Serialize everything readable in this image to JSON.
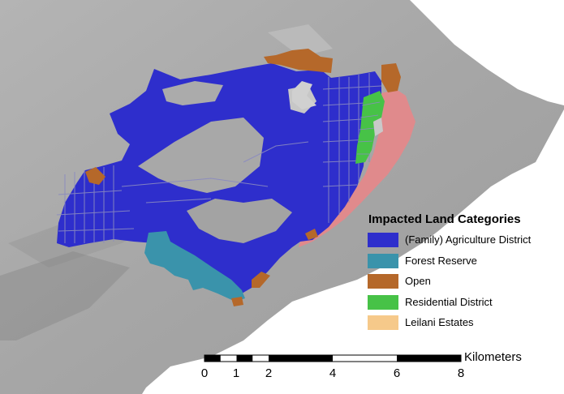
{
  "legend": {
    "title": "Impacted Land Categories",
    "items": [
      {
        "label": "(Family) Agriculture District",
        "color": "#2e2ecc"
      },
      {
        "label": "Forest Reserve",
        "color": "#3a93ab"
      },
      {
        "label": "Open",
        "color": "#b5682a"
      },
      {
        "label": "Residential District",
        "color": "#47c247"
      },
      {
        "label": "Leilani Estates",
        "color": "#f6c98a"
      }
    ]
  },
  "other_colors": {
    "lava_flow_pink": "#e08a8c",
    "ocean": "#ffffff",
    "terrain": "#a9a9a9"
  },
  "scale_bar": {
    "unit": "Kilometers",
    "labels": [
      "0",
      "1",
      "2",
      "4",
      "6",
      "8"
    ]
  }
}
